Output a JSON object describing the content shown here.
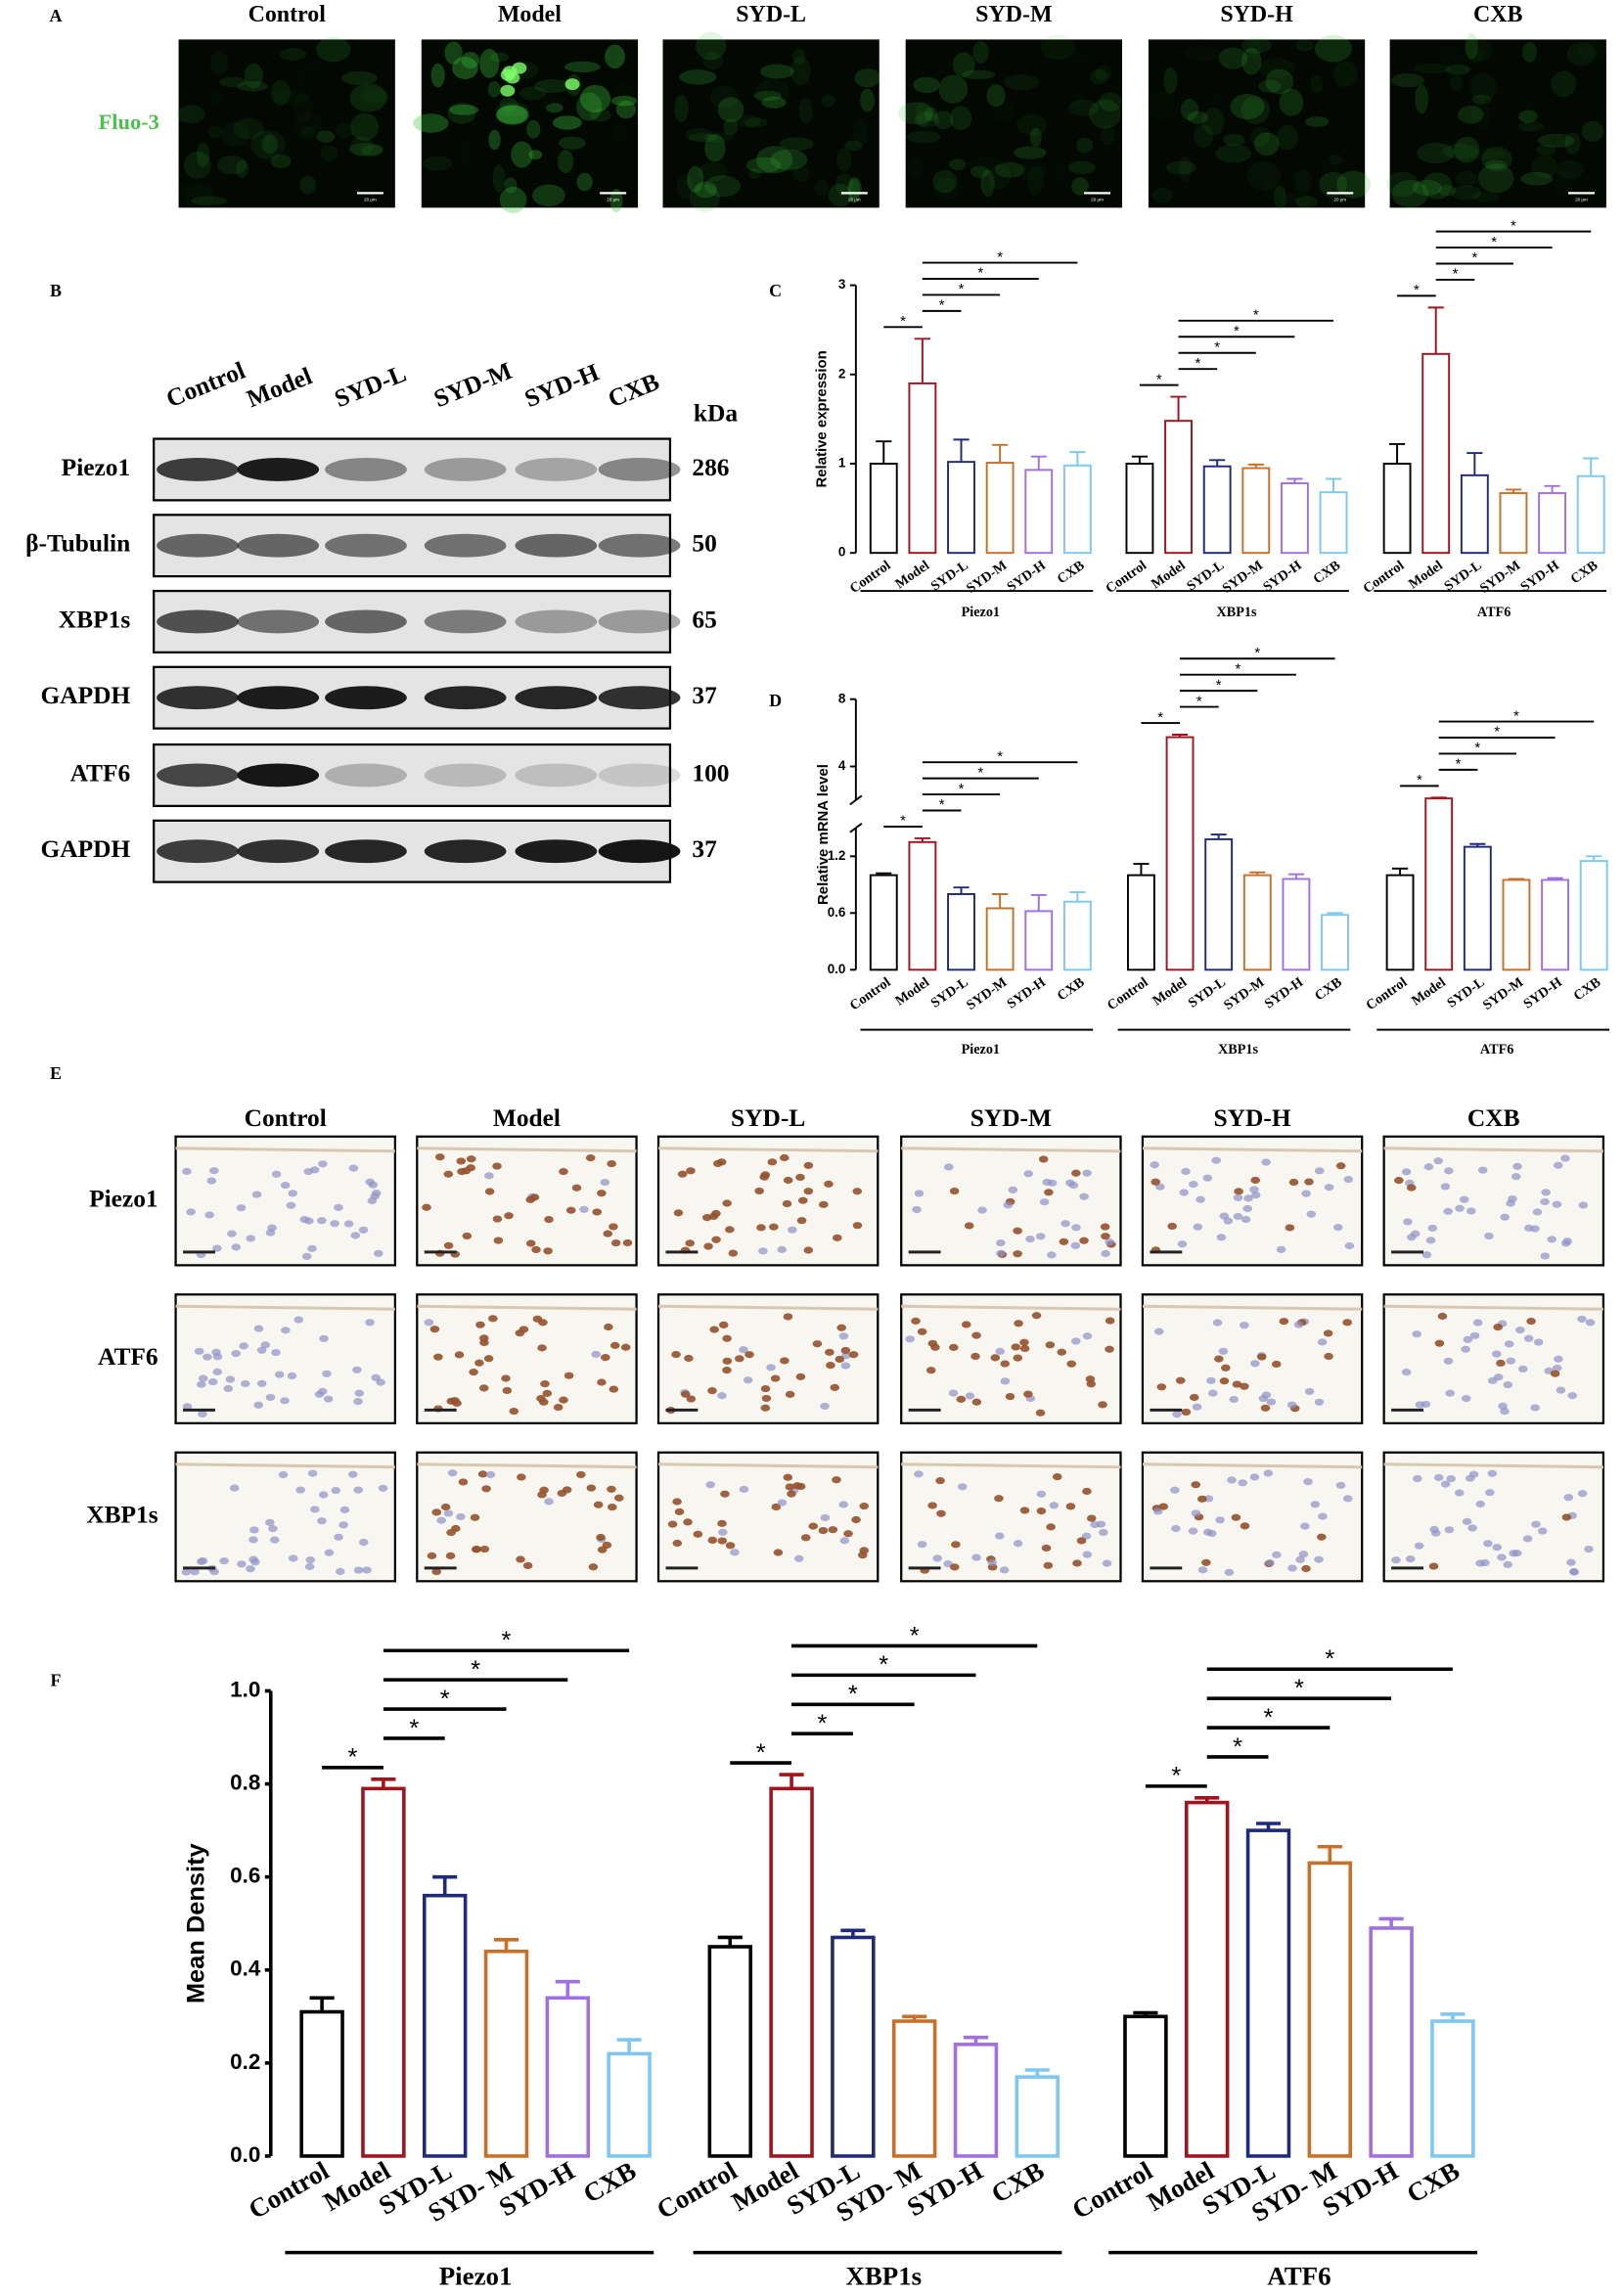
{
  "panel_a": {
    "letter": "A",
    "columns": [
      "Control",
      "Model",
      "SYD-L",
      "SYD-M",
      "SYD-H",
      "CXB"
    ],
    "row_label": "Fluo-3",
    "scale_label": "20 μm"
  },
  "panel_b": {
    "letter": "B",
    "columns": [
      "Control",
      "Model",
      "SYD-L",
      "SYD-M",
      "SYD-H",
      "CXB"
    ],
    "unit_header": "kDa",
    "rows": [
      {
        "label": "Piezo1",
        "kda": 286
      },
      {
        "label": "β-Tubulin",
        "kda": 50
      },
      {
        "label": "XBP1s",
        "kda": 65
      },
      {
        "label": "GAPDH",
        "kda": 37
      },
      {
        "label": "ATF6",
        "kda": 100
      },
      {
        "label": "GAPDH",
        "kda": 37
      }
    ]
  },
  "panel_e": {
    "letter": "E",
    "columns": [
      "Control",
      "Model",
      "SYD-L",
      "SYD-M",
      "SYD-H",
      "CXB"
    ],
    "rows": [
      "Piezo1",
      "ATF6",
      "XBP1s"
    ]
  },
  "chart_data": [
    {
      "type": "grouped_bar",
      "letter": "C",
      "y_label": "Relative expression",
      "categories": [
        "Control",
        "Model",
        "SYD-L",
        "SYD-M",
        "SYD-H",
        "CXB"
      ],
      "colors": [
        "#000000",
        "#a0141e",
        "#1f2a7a",
        "#c8702a",
        "#a070e0",
        "#7ec8f0"
      ],
      "groups": [
        {
          "name": "Piezo1",
          "values": [
            1.0,
            1.9,
            1.02,
            1.01,
            0.93,
            0.98
          ],
          "errors": [
            0.25,
            0.5,
            0.25,
            0.2,
            0.15,
            0.15
          ]
        },
        {
          "name": "XBP1s",
          "values": [
            1.0,
            1.48,
            0.97,
            0.95,
            0.78,
            0.68
          ],
          "errors": [
            0.08,
            0.27,
            0.07,
            0.04,
            0.05,
            0.15
          ]
        },
        {
          "name": "ATF6",
          "values": [
            1.0,
            2.23,
            0.87,
            0.67,
            0.67,
            0.86
          ],
          "errors": [
            0.22,
            0.52,
            0.25,
            0.04,
            0.08,
            0.2
          ]
        }
      ],
      "ylim": [
        0,
        3
      ],
      "yticks": [
        0,
        1,
        2,
        3
      ],
      "significance_label": "*"
    },
    {
      "type": "grouped_bar",
      "letter": "D",
      "y_label": "Relative mRNA level",
      "categories": [
        "Control",
        "Model",
        "SYD-L",
        "SYD-M",
        "SYD-H",
        "CXB"
      ],
      "colors": [
        "#000000",
        "#a0141e",
        "#1f2a7a",
        "#c8702a",
        "#a070e0",
        "#7ec8f0"
      ],
      "groups": [
        {
          "name": "Piezo1",
          "values": [
            1.0,
            1.35,
            0.8,
            0.65,
            0.62,
            0.72
          ],
          "errors": [
            0.02,
            0.04,
            0.07,
            0.15,
            0.17,
            0.1
          ]
        },
        {
          "name": "XBP1s",
          "values": [
            1.0,
            5.74,
            1.38,
            1.0,
            0.96,
            0.58
          ],
          "errors": [
            0.12,
            0.15,
            0.05,
            0.03,
            0.05,
            0.02
          ]
        },
        {
          "name": "ATF6",
          "values": [
            1.0,
            2.1,
            1.3,
            0.95,
            0.95,
            1.15
          ],
          "errors": [
            0.07,
            0.05,
            0.03,
            0.01,
            0.02,
            0.05
          ]
        }
      ],
      "ylim": [
        0,
        8
      ],
      "y_break": [
        1.5,
        2
      ],
      "yticks": [
        {
          "value": 0,
          "label": "0.0"
        },
        0.6,
        1.2,
        4,
        8
      ],
      "significance_label": "*"
    },
    {
      "type": "grouped_bar",
      "letter": "F",
      "y_label": "Mean Density",
      "categories": [
        "Control",
        "Model",
        "SYD-L",
        "SYD- M",
        "SYD-H",
        "CXB"
      ],
      "colors": [
        "#000000",
        "#a0141e",
        "#1f2a7a",
        "#c8702a",
        "#a070e0",
        "#7ec8f0"
      ],
      "groups": [
        {
          "name": "Piezo1",
          "values": [
            0.31,
            0.79,
            0.56,
            0.44,
            0.34,
            0.22
          ],
          "errors": [
            0.03,
            0.02,
            0.04,
            0.025,
            0.035,
            0.03
          ]
        },
        {
          "name": "XBP1s",
          "values": [
            0.45,
            0.79,
            0.47,
            0.29,
            0.24,
            0.17
          ],
          "errors": [
            0.02,
            0.03,
            0.015,
            0.01,
            0.015,
            0.015
          ]
        },
        {
          "name": "ATF6",
          "values": [
            0.3,
            0.76,
            0.7,
            0.63,
            0.49,
            0.29
          ],
          "errors": [
            0.008,
            0.01,
            0.015,
            0.035,
            0.02,
            0.015
          ]
        }
      ],
      "ylim": [
        0,
        1.0
      ],
      "yticks": [
        {
          "value": 0,
          "label": "0.0"
        },
        0.2,
        0.4,
        0.6,
        0.8,
        {
          "value": 1.0,
          "label": "1.0"
        }
      ],
      "significance_label": "*"
    }
  ]
}
